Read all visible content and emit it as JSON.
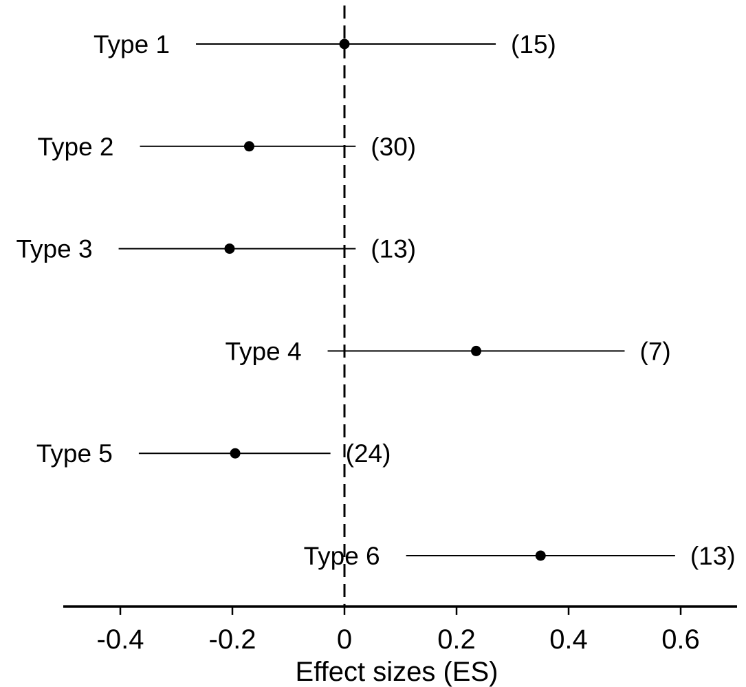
{
  "chart_data": {
    "type": "scatter",
    "subtype": "forest-plot",
    "title": "",
    "xlabel": "Effect sizes (ES)",
    "ylabel": "",
    "xlim": [
      -0.5,
      0.7
    ],
    "x_ticks": [
      -0.4,
      -0.2,
      0,
      0.2,
      0.4,
      0.6
    ],
    "x_tick_labels": [
      "-0.4",
      "-0.2",
      "0",
      "0.2",
      "0.4",
      "0.6"
    ],
    "reference_line": {
      "x": 0,
      "style": "dashed"
    },
    "grid": false,
    "legend": "none",
    "marker_color": "#000000",
    "rows": [
      {
        "label": "Type 1",
        "estimate": 0.0,
        "ci_low": -0.265,
        "ci_high": 0.27,
        "n_label": "(15)"
      },
      {
        "label": "Type 2",
        "estimate": -0.17,
        "ci_low": -0.365,
        "ci_high": 0.02,
        "n_label": "(30)"
      },
      {
        "label": "Type 3",
        "estimate": -0.205,
        "ci_low": -0.403,
        "ci_high": 0.02,
        "n_label": "(13)"
      },
      {
        "label": "Type 4",
        "estimate": 0.235,
        "ci_low": -0.03,
        "ci_high": 0.5,
        "n_label": "(7)"
      },
      {
        "label": "Type 5",
        "estimate": -0.195,
        "ci_low": -0.367,
        "ci_high": -0.025,
        "n_label": "(24)"
      },
      {
        "label": "Type 6",
        "estimate": 0.35,
        "ci_low": 0.11,
        "ci_high": 0.59,
        "n_label": "(13)"
      }
    ]
  }
}
